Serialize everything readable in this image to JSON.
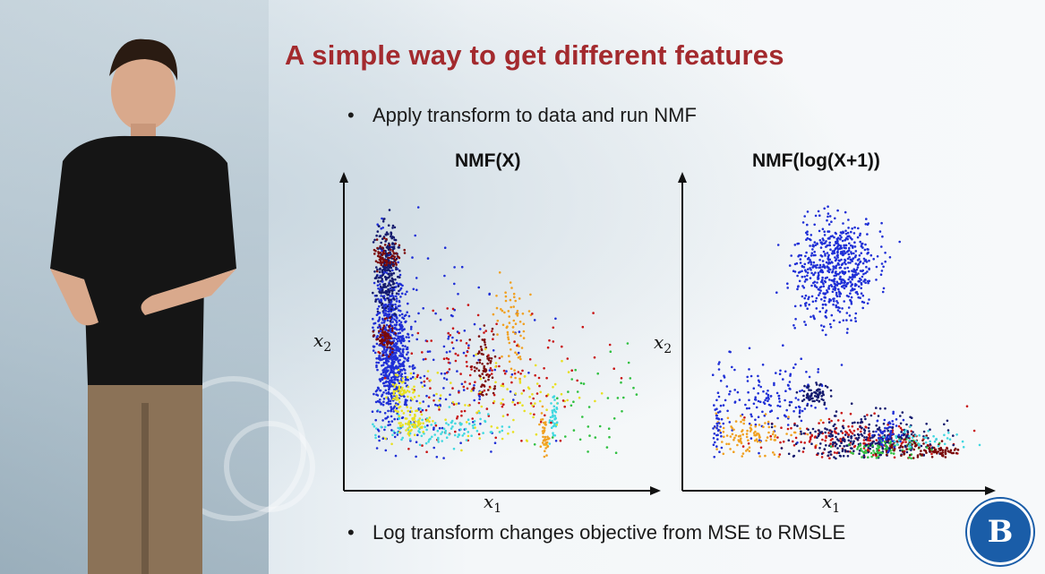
{
  "slide": {
    "title": "A simple way to get different features",
    "bullet_top": "Apply transform to data and run NMF",
    "bullet_bottom": "Log transform changes objective from MSE to  RMSLE"
  },
  "plots": [
    {
      "title": "NMF(X)",
      "xlabel": "x",
      "xlabel_sub": "1",
      "ylabel": "x",
      "ylabel_sub": "2"
    },
    {
      "title": "NMF(log(X+1))",
      "xlabel": "x",
      "xlabel_sub": "1",
      "ylabel": "x",
      "ylabel_sub": "2"
    }
  ],
  "colors": {
    "title": "#a32a2e",
    "blue": "#1f2fd6",
    "navy": "#141a6e",
    "red": "#c81414",
    "darkred": "#7a0a0a",
    "orange": "#f0a020",
    "yellow": "#e8e020",
    "cyan": "#40d8e0",
    "green": "#30c040",
    "logo": "#1a5da8"
  }
}
